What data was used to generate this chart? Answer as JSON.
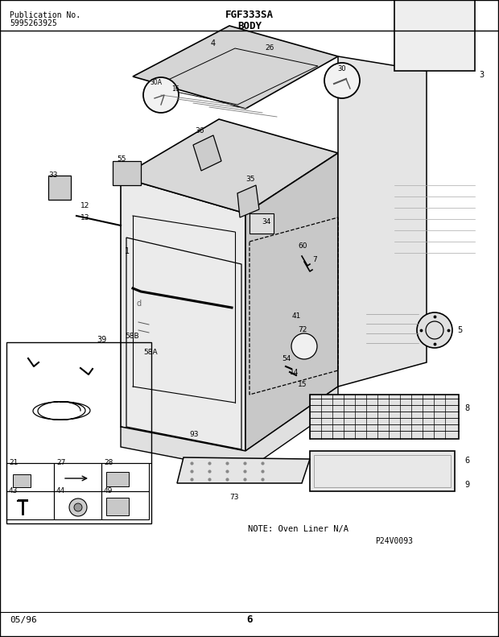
{
  "title_center": "FGF333SA",
  "title_sub": "BODY",
  "pub_no_label": "Publication No.",
  "pub_no": "5995263925",
  "date": "05/96",
  "page": "6",
  "note": "NOTE: Oven Liner N/A",
  "part_code": "P24V0093",
  "bg_color": "#ffffff",
  "border_color": "#000000",
  "diagram_color": "#888888",
  "text_color": "#000000",
  "fig_width": 6.2,
  "fig_height": 7.91,
  "dpi": 100
}
